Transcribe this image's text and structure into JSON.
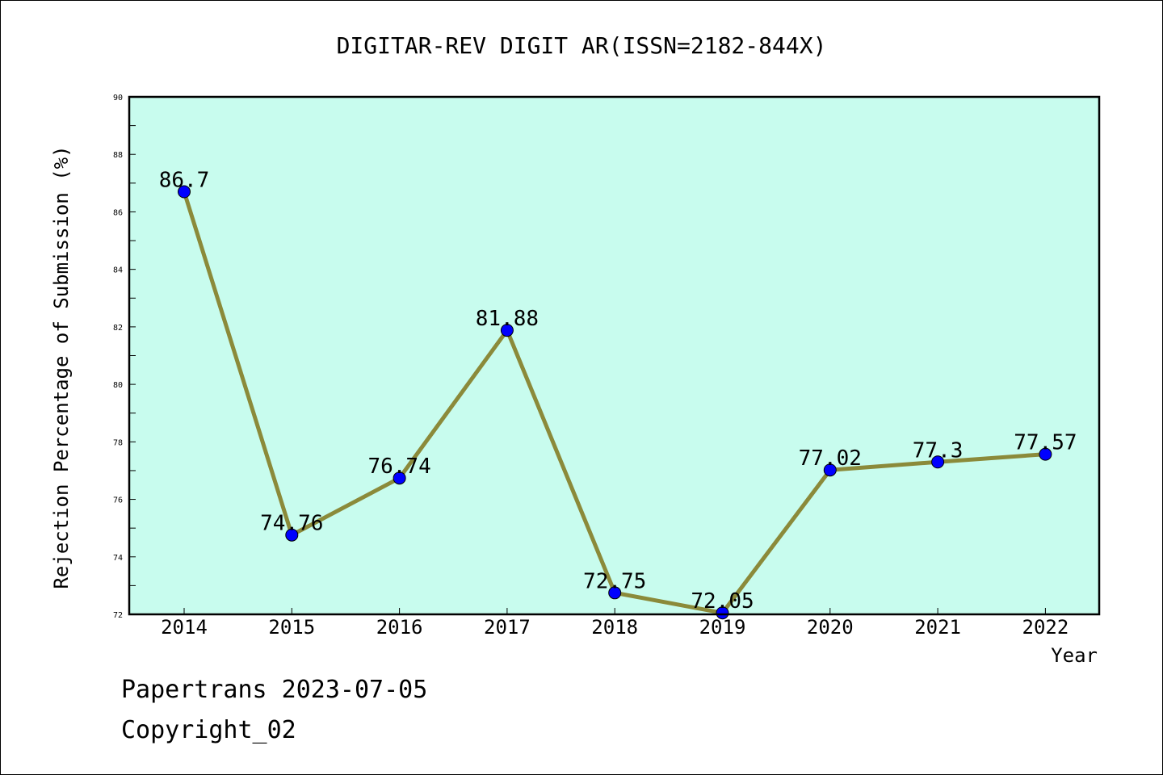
{
  "chart_data": {
    "type": "line",
    "title": "DIGITAR-REV DIGIT AR(ISSN=2182-844X)",
    "xlabel": "Year",
    "ylabel": "Rejection Percentage of Submission (%)",
    "categories": [
      "2014",
      "2015",
      "2016",
      "2017",
      "2018",
      "2019",
      "2020",
      "2021",
      "2022"
    ],
    "values": [
      86.7,
      74.76,
      76.74,
      81.88,
      72.75,
      72.05,
      77.02,
      77.3,
      77.57
    ],
    "data_labels": [
      "86.7",
      "74.76",
      "76.74",
      "81.88",
      "72.75",
      "72.05",
      "77.02",
      "77.3",
      "77.57"
    ],
    "ylim": [
      72,
      90
    ],
    "yticks": [
      72,
      74,
      76,
      78,
      80,
      82,
      84,
      86,
      88,
      90
    ],
    "grid": false,
    "legend": "none",
    "colors": {
      "plot_background": "#c8fcee",
      "line": "#8b8a3a",
      "marker": "#0000ff"
    }
  },
  "footer": {
    "line1": "Papertrans 2023-07-05",
    "line2": "Copyright_02"
  }
}
